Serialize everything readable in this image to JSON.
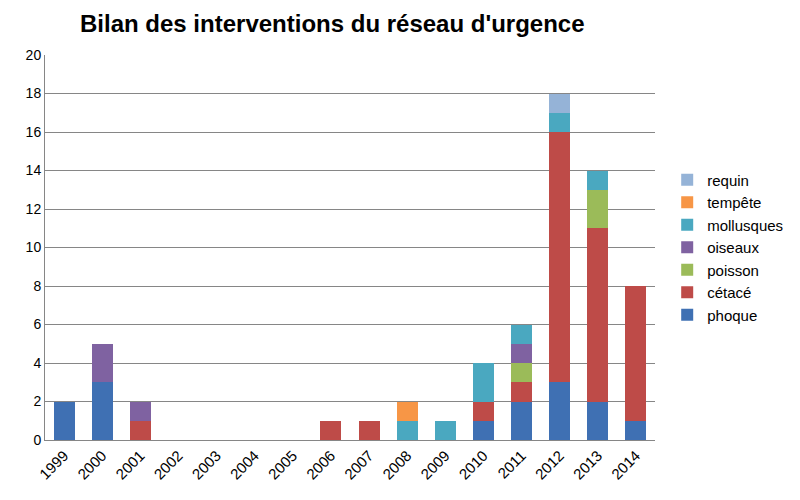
{
  "chart_data": {
    "type": "bar",
    "stacked": true,
    "title": "Bilan des interventions du réseau d'urgence",
    "categories": [
      "1999",
      "2000",
      "2001",
      "2002",
      "2003",
      "2004",
      "2005",
      "2006",
      "2007",
      "2008",
      "2009",
      "2010",
      "2011",
      "2012",
      "2013",
      "2014"
    ],
    "series": [
      {
        "name": "phoque",
        "color": "#3f70b3",
        "values": [
          2,
          3,
          0,
          0,
          0,
          0,
          0,
          0,
          0,
          0,
          0,
          1,
          2,
          3,
          2,
          1
        ]
      },
      {
        "name": "cétacé",
        "color": "#be4b48",
        "values": [
          0,
          0,
          1,
          0,
          0,
          0,
          0,
          1,
          1,
          0,
          0,
          1,
          1,
          13,
          9,
          7
        ]
      },
      {
        "name": "poisson",
        "color": "#9bbb59",
        "values": [
          0,
          0,
          0,
          0,
          0,
          0,
          0,
          0,
          0,
          0,
          0,
          0,
          1,
          0,
          2,
          0
        ]
      },
      {
        "name": "oiseaux",
        "color": "#7f62a1",
        "values": [
          0,
          2,
          1,
          0,
          0,
          0,
          0,
          0,
          0,
          0,
          0,
          0,
          1,
          0,
          0,
          0
        ]
      },
      {
        "name": "mollusques",
        "color": "#4aa8c0",
        "values": [
          0,
          0,
          0,
          0,
          0,
          0,
          0,
          0,
          0,
          1,
          1,
          2,
          1,
          1,
          1,
          0
        ]
      },
      {
        "name": "tempête",
        "color": "#f79646",
        "values": [
          0,
          0,
          0,
          0,
          0,
          0,
          0,
          0,
          0,
          1,
          0,
          0,
          0,
          0,
          0,
          0
        ]
      },
      {
        "name": "requin",
        "color": "#95b3d7",
        "values": [
          0,
          0,
          0,
          0,
          0,
          0,
          0,
          0,
          0,
          0,
          0,
          0,
          0,
          1,
          0,
          0
        ]
      }
    ],
    "ylim": [
      0,
      20
    ],
    "yticks": [
      0,
      2,
      4,
      6,
      8,
      10,
      12,
      14,
      16,
      18,
      20
    ],
    "grid": true,
    "legend": "right"
  }
}
